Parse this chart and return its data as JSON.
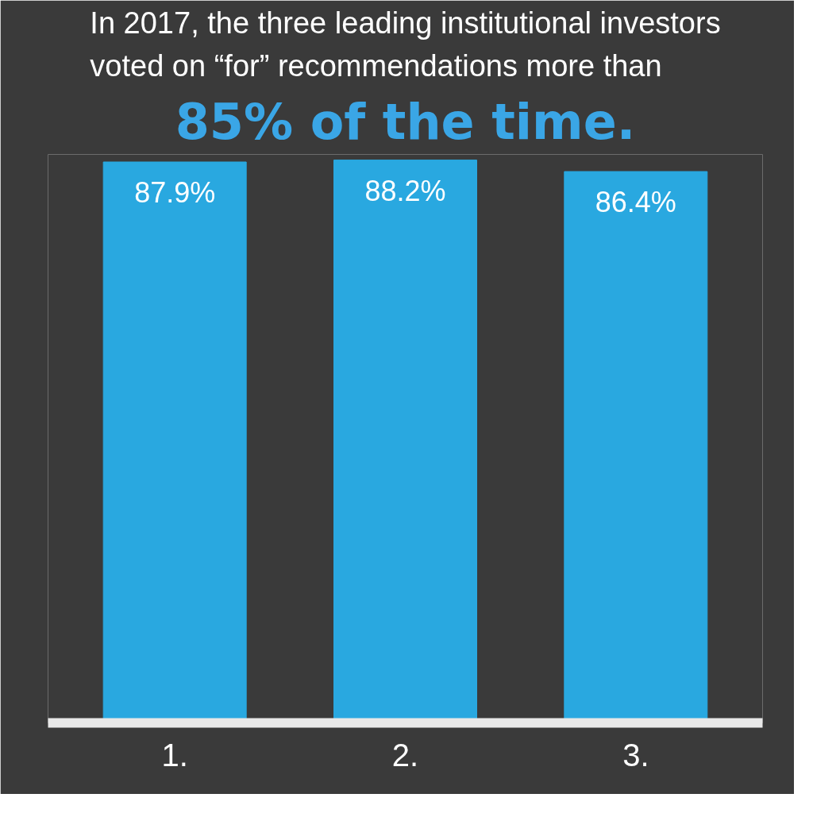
{
  "chart_data": {
    "type": "bar",
    "title": "In 2017, the three leading institutional investors voted on “for” recommendations more than",
    "subtitle": "85% of the time.",
    "categories": [
      "1.",
      "2.",
      "3."
    ],
    "values": [
      87.9,
      88.2,
      86.4
    ],
    "value_labels": [
      "87.9%",
      "88.2%",
      "86.4%"
    ],
    "color": "#29a8e0",
    "grid": false,
    "tick_labels": "x"
  }
}
